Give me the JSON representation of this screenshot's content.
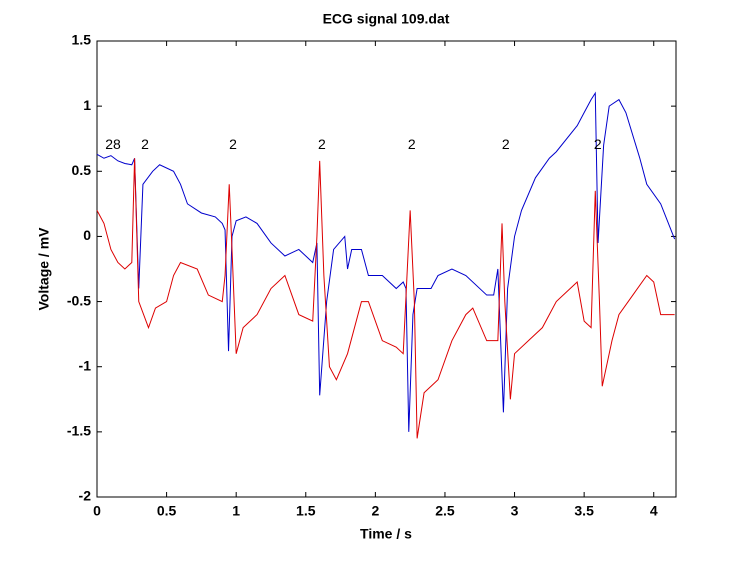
{
  "chart_data": {
    "type": "line",
    "title": "ECG signal 109.dat",
    "x_label": "Time / s",
    "y_label": "Voltage / mV",
    "xlim": [
      0,
      4.16
    ],
    "ylim": [
      -2,
      1.5
    ],
    "xticks": [
      0,
      0.5,
      1,
      1.5,
      2,
      2.5,
      3,
      3.5,
      4
    ],
    "yticks": [
      -2,
      -1.5,
      -1,
      -0.5,
      0,
      0.5,
      1,
      1.5
    ],
    "series": [
      {
        "name": "blue",
        "color": "#0000cc",
        "x": [
          0,
          0.05,
          0.1,
          0.15,
          0.2,
          0.25,
          0.27,
          0.3,
          0.33,
          0.4,
          0.45,
          0.55,
          0.6,
          0.65,
          0.75,
          0.85,
          0.9,
          0.92,
          0.945,
          0.97,
          1.0,
          1.07,
          1.15,
          1.25,
          1.35,
          1.45,
          1.55,
          1.58,
          1.6,
          1.65,
          1.7,
          1.78,
          1.8,
          1.83,
          1.9,
          1.95,
          2.05,
          2.15,
          2.2,
          2.22,
          2.24,
          2.27,
          2.3,
          2.4,
          2.45,
          2.55,
          2.65,
          2.8,
          2.85,
          2.88,
          2.92,
          2.95,
          3.0,
          3.05,
          3.15,
          3.25,
          3.3,
          3.45,
          3.5,
          3.55,
          3.58,
          3.6,
          3.64,
          3.68,
          3.75,
          3.8,
          3.9,
          3.95,
          4.05,
          4.15
        ],
        "values": [
          0.63,
          0.6,
          0.62,
          0.58,
          0.56,
          0.55,
          0.6,
          -0.4,
          0.4,
          0.5,
          0.55,
          0.5,
          0.4,
          0.25,
          0.18,
          0.15,
          0.1,
          0.05,
          -0.88,
          0,
          0.12,
          0.15,
          0.1,
          -0.05,
          -0.15,
          -0.1,
          -0.2,
          -0.05,
          -1.22,
          -0.5,
          -0.1,
          0,
          -0.25,
          -0.1,
          -0.1,
          -0.3,
          -0.3,
          -0.4,
          -0.35,
          -0.4,
          -1.5,
          -0.6,
          -0.4,
          -0.4,
          -0.3,
          -0.25,
          -0.3,
          -0.45,
          -0.45,
          -0.25,
          -1.35,
          -0.4,
          0,
          0.2,
          0.45,
          0.6,
          0.65,
          0.85,
          0.95,
          1.05,
          1.1,
          -0.05,
          0.7,
          1.0,
          1.05,
          0.95,
          0.6,
          0.4,
          0.25,
          -0.02
        ]
      },
      {
        "name": "red",
        "color": "#dd0000",
        "x": [
          0,
          0.05,
          0.1,
          0.15,
          0.2,
          0.25,
          0.27,
          0.3,
          0.37,
          0.42,
          0.5,
          0.55,
          0.6,
          0.72,
          0.8,
          0.9,
          0.92,
          0.95,
          0.97,
          1.0,
          1.05,
          1.15,
          1.25,
          1.35,
          1.45,
          1.55,
          1.58,
          1.6,
          1.63,
          1.67,
          1.72,
          1.8,
          1.9,
          1.95,
          2.05,
          2.15,
          2.2,
          2.25,
          2.28,
          2.3,
          2.35,
          2.45,
          2.55,
          2.65,
          2.7,
          2.8,
          2.88,
          2.91,
          2.93,
          2.97,
          3.0,
          3.1,
          3.2,
          3.3,
          3.4,
          3.45,
          3.5,
          3.55,
          3.58,
          3.61,
          3.63,
          3.7,
          3.75,
          3.85,
          3.95,
          4.0,
          4.05,
          4.15
        ],
        "values": [
          0.2,
          0.1,
          -0.1,
          -0.2,
          -0.25,
          -0.2,
          0.6,
          -0.5,
          -0.7,
          -0.55,
          -0.5,
          -0.3,
          -0.2,
          -0.25,
          -0.45,
          -0.5,
          -0.3,
          0.4,
          -0.1,
          -0.9,
          -0.7,
          -0.6,
          -0.4,
          -0.3,
          -0.6,
          -0.65,
          0,
          0.58,
          -0.3,
          -1.0,
          -1.1,
          -0.9,
          -0.5,
          -0.5,
          -0.8,
          -0.85,
          -0.9,
          0.2,
          -0.5,
          -1.55,
          -1.2,
          -1.1,
          -0.8,
          -0.6,
          -0.55,
          -0.8,
          -0.8,
          0.1,
          -0.5,
          -1.25,
          -0.9,
          -0.8,
          -0.7,
          -0.5,
          -0.4,
          -0.35,
          -0.65,
          -0.7,
          0.35,
          -0.5,
          -1.15,
          -0.8,
          -0.6,
          -0.45,
          -0.3,
          -0.35,
          -0.6,
          -0.6
        ]
      }
    ],
    "annotations": [
      {
        "text": "28",
        "x": 0.115,
        "y": 0.7
      },
      {
        "text": "2",
        "x": 0.345,
        "y": 0.7
      },
      {
        "text": "2",
        "x": 0.977,
        "y": 0.7
      },
      {
        "text": "2",
        "x": 1.616,
        "y": 0.7
      },
      {
        "text": "2",
        "x": 2.262,
        "y": 0.7
      },
      {
        "text": "2",
        "x": 2.937,
        "y": 0.7
      },
      {
        "text": "2",
        "x": 3.598,
        "y": 0.7
      }
    ]
  }
}
